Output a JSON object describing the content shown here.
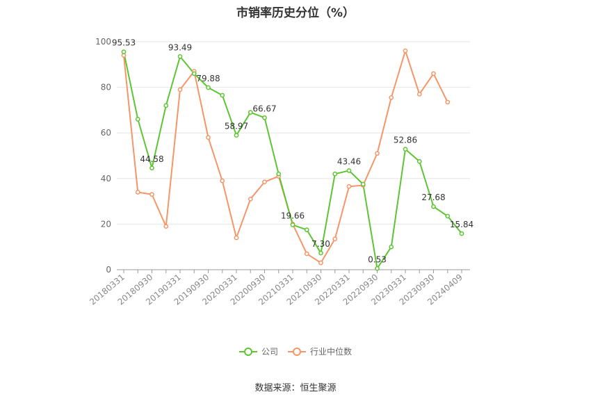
{
  "title": "市销率历史分位（%）",
  "source": "数据来源：恒生聚源",
  "colors": {
    "company": "#5cc531",
    "industry": "#f59568",
    "grid": "#e6e6e6",
    "axis": "#999999"
  },
  "chart_data": {
    "type": "line",
    "title": "市销率历史分位（%）",
    "ylim": [
      0,
      100
    ],
    "yticks": [
      0,
      20,
      40,
      60,
      80,
      100
    ],
    "grid": true,
    "legend_position": "bottom",
    "x": [
      "20180331",
      "20180630",
      "20180930",
      "20181231",
      "20190331",
      "20190630",
      "20190930",
      "20191231",
      "20200331",
      "20200630",
      "20200930",
      "20201231",
      "20210331",
      "20210630",
      "20210930",
      "20211231",
      "20220331",
      "20220630",
      "20220930",
      "20221231",
      "20230331",
      "20230630",
      "20230930",
      "20231231",
      "20240409"
    ],
    "xtick_labels": [
      "20180331",
      "20180930",
      "20190331",
      "20190930",
      "20200331",
      "20200930",
      "20210331",
      "20210930",
      "20220331",
      "20220930",
      "20230331",
      "20230930",
      "20240409"
    ],
    "series": [
      {
        "name": "公司",
        "color": "#5cc531",
        "values": [
          95.53,
          66.0,
          44.58,
          72.0,
          93.49,
          86.0,
          79.88,
          76.5,
          58.97,
          69.0,
          66.67,
          42.0,
          19.66,
          17.5,
          7.3,
          42.0,
          43.46,
          37.5,
          0.53,
          10.0,
          52.86,
          47.5,
          27.68,
          23.5,
          15.84
        ],
        "labels": {
          "0": "95.53",
          "2": "44.58",
          "4": "93.49",
          "6": "79.88",
          "8": "58.97",
          "10": "66.67",
          "12": "19.66",
          "14": "7.30",
          "16": "43.46",
          "18": "0.53",
          "20": "52.86",
          "22": "27.68",
          "24": "15.84"
        }
      },
      {
        "name": "行业中位数",
        "color": "#f59568",
        "values": [
          94.0,
          34.0,
          33.0,
          19.0,
          79.0,
          87.0,
          58.0,
          39.0,
          14.0,
          31.0,
          38.5,
          41.0,
          20.0,
          7.0,
          3.0,
          13.5,
          36.5,
          37.0,
          51.0,
          75.5,
          96.0,
          77.0,
          86.0,
          73.5,
          null
        ]
      }
    ]
  }
}
